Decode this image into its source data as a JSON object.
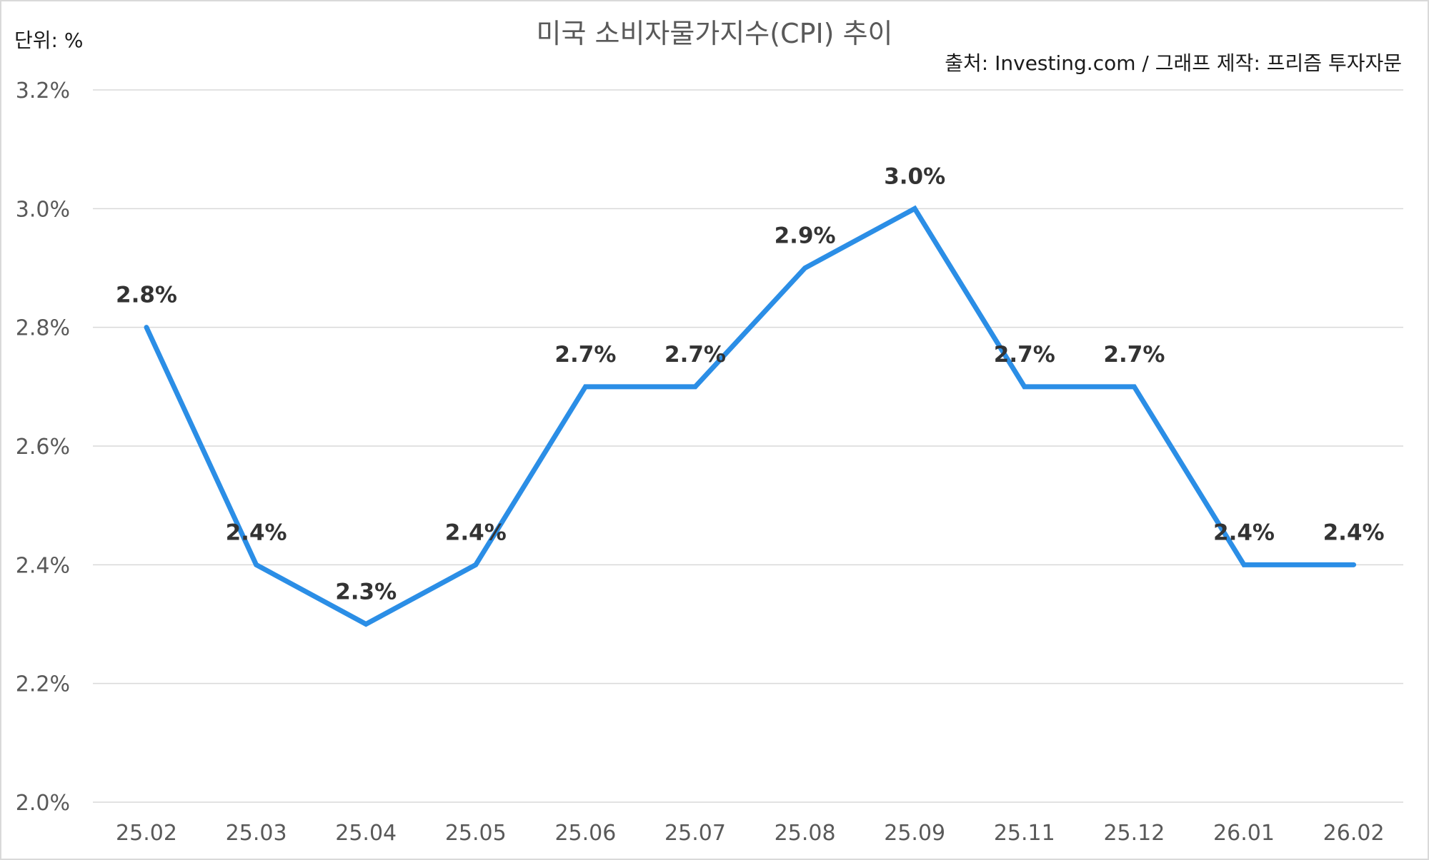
{
  "chart_data": {
    "type": "line",
    "title": "미국 소비자물가지수(CPI) 추이",
    "unit_label": "단위: %",
    "source_label": "출처: Investing.com / 그래프 제작: 프리즘 투자자문",
    "categories": [
      "25.02",
      "25.03",
      "25.04",
      "25.05",
      "25.06",
      "25.07",
      "25.08",
      "25.09",
      "25.11",
      "25.12",
      "26.01",
      "26.02"
    ],
    "series": [
      {
        "values": [
          2.8,
          2.4,
          2.3,
          2.4,
          2.7,
          2.7,
          2.9,
          3.0,
          2.7,
          2.7,
          2.4,
          2.4
        ],
        "labels": [
          "2.8%",
          "2.4%",
          "2.3%",
          "2.4%",
          "2.7%",
          "2.7%",
          "2.9%",
          "3.0%",
          "2.7%",
          "2.7%",
          "2.4%",
          "2.4%"
        ],
        "color": "#2b8ee6"
      }
    ],
    "y_ticks": [
      2.0,
      2.2,
      2.4,
      2.6,
      2.8,
      3.0,
      3.2
    ],
    "y_tick_labels": [
      "2.0%",
      "2.2%",
      "2.4%",
      "2.6%",
      "2.8%",
      "3.0%",
      "3.2%"
    ],
    "ylim": [
      2.0,
      3.2
    ],
    "grid": true,
    "legend": "none",
    "gridline_color": "#d9d9d9"
  }
}
